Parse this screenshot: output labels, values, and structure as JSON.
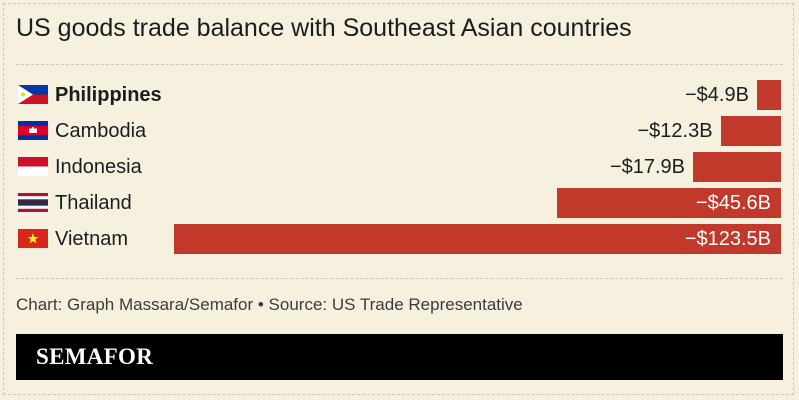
{
  "title": "US goods trade balance with Southeast Asian countries",
  "source": "Chart: Graph Massara/Semafor • Source: US Trade Representative",
  "brand": "SEMAFOR",
  "colors": {
    "background": "#f6f1df",
    "bar": "#c0392b",
    "brand_band": "#000000"
  },
  "chart_data": {
    "type": "bar",
    "orientation": "horizontal",
    "title": "US goods trade balance with Southeast Asian countries",
    "categories": [
      "Philippines",
      "Cambodia",
      "Indonesia",
      "Thailand",
      "Vietnam"
    ],
    "values": [
      -4.9,
      -12.3,
      -17.9,
      -45.6,
      -123.5
    ],
    "labels": [
      "−$4.9B",
      "−$12.3B",
      "−$17.9B",
      "−$45.6B",
      "−$123.5B"
    ],
    "flags": [
      "philippines-flag-icon",
      "cambodia-flag-icon",
      "indonesia-flag-icon",
      "thailand-flag-icon",
      "vietnam-flag-icon"
    ],
    "highlight": "Philippines",
    "grid": false,
    "legend": "none"
  }
}
